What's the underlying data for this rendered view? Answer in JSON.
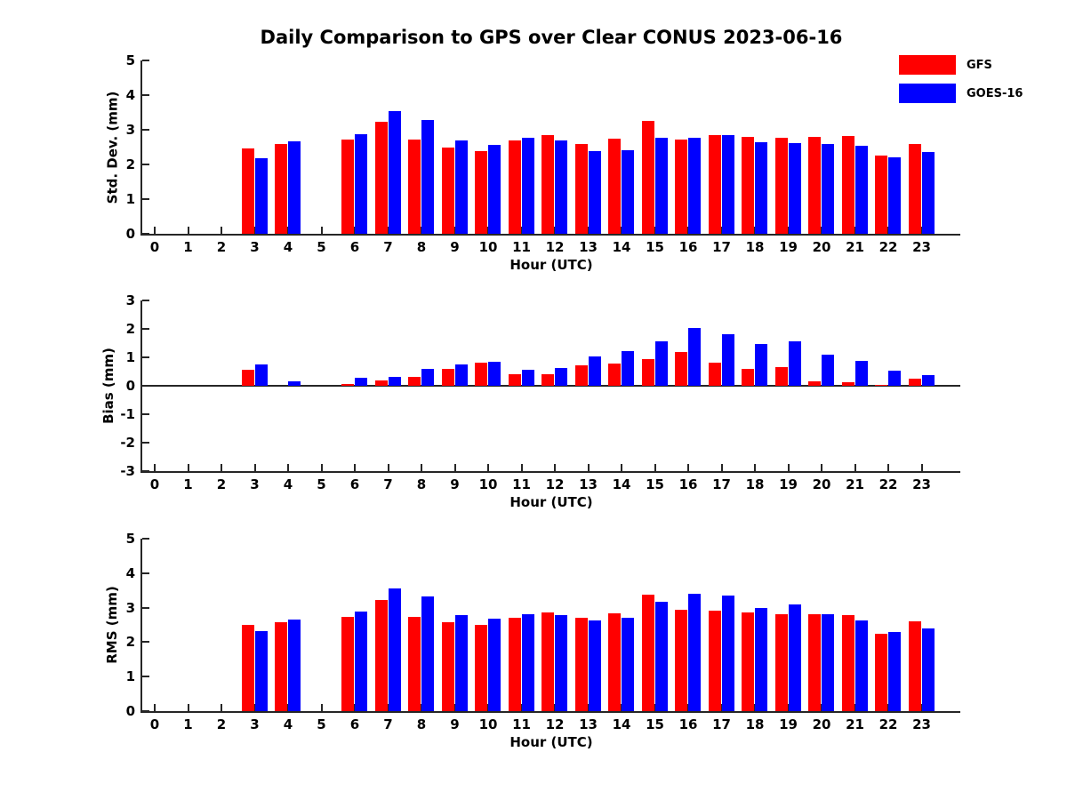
{
  "title": "Daily Comparison to GPS over Clear CONUS 2023-06-16",
  "legend": {
    "items": [
      {
        "label": "GFS",
        "color": "#ff0000"
      },
      {
        "label": "GOES-16",
        "color": "#0000ff"
      }
    ]
  },
  "chart_data": [
    {
      "type": "bar",
      "title": "Daily Comparison to GPS over Clear CONUS 2023-06-16",
      "xlabel": "Hour (UTC)",
      "ylabel": "Std. Dev. (mm)",
      "ylim": [
        0,
        5
      ],
      "yticks": [
        0,
        1,
        2,
        3,
        4,
        5
      ],
      "grid": false,
      "legend_position": "upper right of figure",
      "categories": [
        0,
        1,
        2,
        3,
        4,
        5,
        6,
        7,
        8,
        9,
        10,
        11,
        12,
        13,
        14,
        15,
        16,
        17,
        18,
        19,
        20,
        21,
        22,
        23
      ],
      "series": [
        {
          "name": "GFS",
          "color": "#ff0000",
          "values": [
            null,
            null,
            null,
            2.45,
            2.58,
            null,
            2.73,
            3.22,
            2.73,
            2.5,
            2.39,
            2.68,
            2.84,
            2.58,
            2.75,
            3.25,
            2.71,
            2.84,
            2.79,
            2.77,
            2.8,
            2.81,
            2.25,
            2.6
          ]
        },
        {
          "name": "GOES-16",
          "color": "#0000ff",
          "values": [
            null,
            null,
            null,
            2.18,
            2.67,
            null,
            2.88,
            3.54,
            3.29,
            2.7,
            2.57,
            2.77,
            2.7,
            2.39,
            2.42,
            2.77,
            2.78,
            2.84,
            2.63,
            2.61,
            2.59,
            2.54,
            2.2,
            2.37
          ]
        }
      ]
    },
    {
      "type": "bar",
      "title": "",
      "xlabel": "Hour (UTC)",
      "ylabel": "Bias (mm)",
      "ylim": [
        -3,
        3
      ],
      "yticks": [
        -3,
        -2,
        -1,
        0,
        1,
        2,
        3
      ],
      "grid": false,
      "categories": [
        0,
        1,
        2,
        3,
        4,
        5,
        6,
        7,
        8,
        9,
        10,
        11,
        12,
        13,
        14,
        15,
        16,
        17,
        18,
        19,
        20,
        21,
        22,
        23
      ],
      "series": [
        {
          "name": "GFS",
          "color": "#ff0000",
          "values": [
            null,
            null,
            null,
            0.55,
            null,
            null,
            0.05,
            0.2,
            0.3,
            0.6,
            0.8,
            0.4,
            0.42,
            0.73,
            0.77,
            0.95,
            1.2,
            0.8,
            0.58,
            0.67,
            0.16,
            0.14,
            0.03,
            0.25
          ]
        },
        {
          "name": "GOES-16",
          "color": "#0000ff",
          "values": [
            null,
            null,
            null,
            0.75,
            0.15,
            null,
            0.28,
            0.3,
            0.6,
            0.75,
            0.85,
            0.57,
            0.62,
            1.04,
            1.22,
            1.56,
            2.02,
            1.82,
            1.48,
            1.56,
            1.08,
            0.87,
            0.53,
            0.38
          ]
        }
      ]
    },
    {
      "type": "bar",
      "title": "",
      "xlabel": "Hour (UTC)",
      "ylabel": "RMS (mm)",
      "ylim": [
        0,
        5
      ],
      "yticks": [
        0,
        1,
        2,
        3,
        4,
        5
      ],
      "grid": false,
      "categories": [
        0,
        1,
        2,
        3,
        4,
        5,
        6,
        7,
        8,
        9,
        10,
        11,
        12,
        13,
        14,
        15,
        16,
        17,
        18,
        19,
        20,
        21,
        22,
        23
      ],
      "series": [
        {
          "name": "GFS",
          "color": "#ff0000",
          "values": [
            null,
            null,
            null,
            2.5,
            2.58,
            null,
            2.73,
            3.22,
            2.73,
            2.58,
            2.5,
            2.7,
            2.87,
            2.7,
            2.84,
            3.38,
            2.95,
            2.92,
            2.85,
            2.81,
            2.8,
            2.79,
            2.25,
            2.61
          ]
        },
        {
          "name": "GOES-16",
          "color": "#0000ff",
          "values": [
            null,
            null,
            null,
            2.32,
            2.65,
            null,
            2.88,
            3.56,
            3.32,
            2.78,
            2.67,
            2.81,
            2.78,
            2.63,
            2.71,
            3.16,
            3.41,
            3.34,
            3.0,
            3.08,
            2.82,
            2.64,
            2.29,
            2.39
          ]
        }
      ]
    }
  ]
}
